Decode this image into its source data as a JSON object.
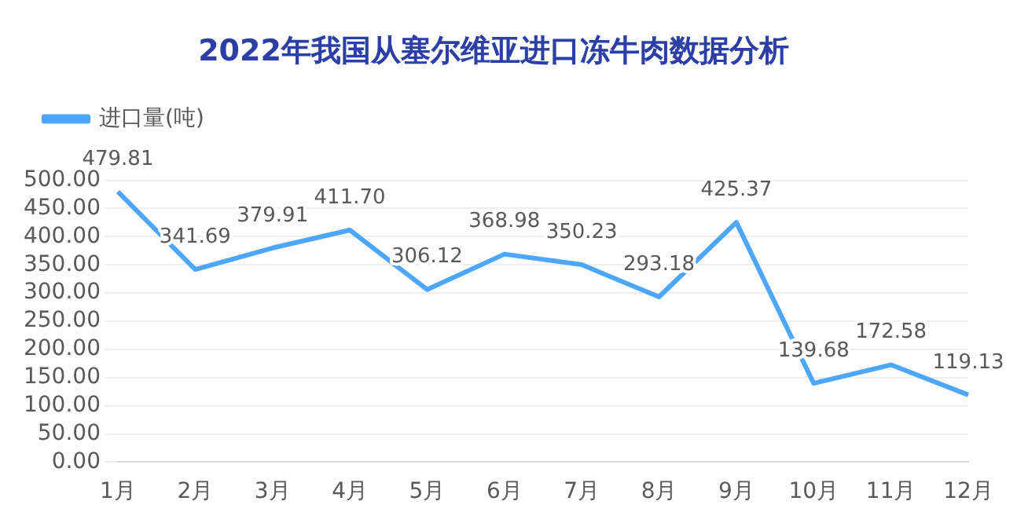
{
  "chart_data": {
    "type": "line",
    "title": "2022年我国从塞尔维亚进口冻牛肉数据分析",
    "categories": [
      "1月",
      "2月",
      "3月",
      "4月",
      "5月",
      "6月",
      "7月",
      "8月",
      "9月",
      "10月",
      "11月",
      "12月"
    ],
    "series": [
      {
        "name": "进口量(吨)",
        "color": "#4da6ff",
        "values": [
          479.81,
          341.69,
          379.91,
          411.7,
          306.12,
          368.98,
          350.23,
          293.18,
          425.37,
          139.68,
          172.58,
          119.13
        ]
      }
    ],
    "ylim": [
      0,
      500
    ],
    "yticks": [
      {
        "value": 0,
        "label": "0.00"
      },
      {
        "value": 50,
        "label": "50.00"
      },
      {
        "value": 100,
        "label": "100.00"
      },
      {
        "value": 150,
        "label": "150.00"
      },
      {
        "value": 200,
        "label": "200.00"
      },
      {
        "value": 250,
        "label": "250.00"
      },
      {
        "value": 300,
        "label": "300.00"
      },
      {
        "value": 350,
        "label": "350.00"
      },
      {
        "value": 400,
        "label": "400.00"
      },
      {
        "value": 450,
        "label": "450.00"
      },
      {
        "value": 500,
        "label": "500.00"
      }
    ],
    "value_labels": [
      "479.81",
      "341.69",
      "379.91",
      "411.70",
      "306.12",
      "368.98",
      "350.23",
      "293.18",
      "425.37",
      "139.68",
      "172.58",
      "119.13"
    ],
    "grid": "y",
    "legend": "top left",
    "marker": "none",
    "line_style": "solid"
  }
}
